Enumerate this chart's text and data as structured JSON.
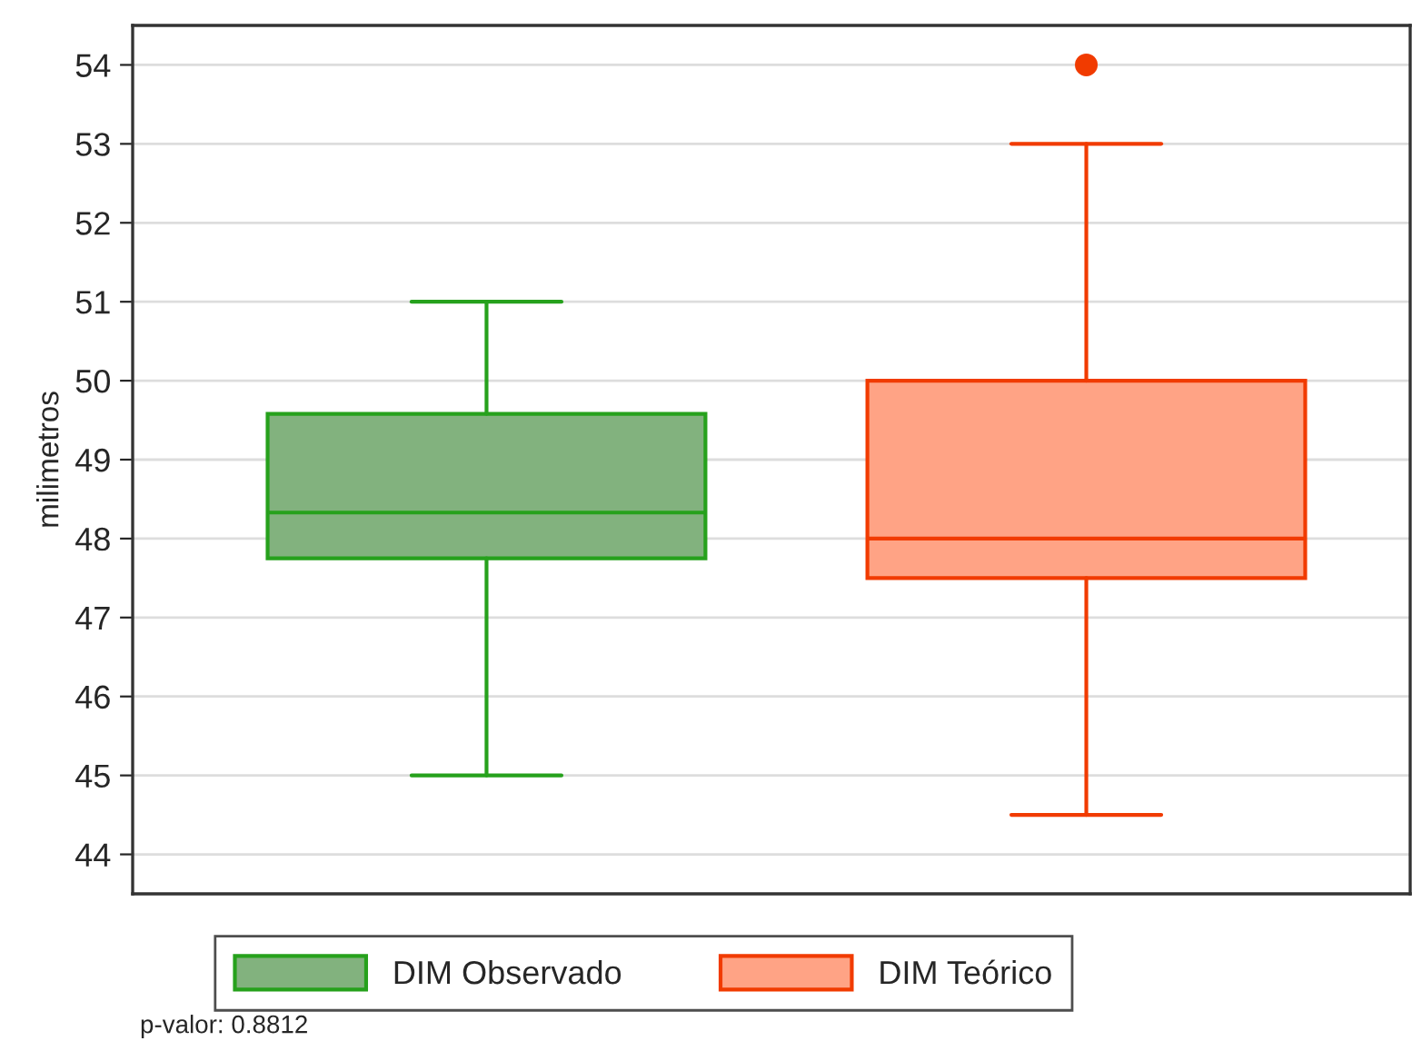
{
  "chart_data": {
    "type": "box",
    "ylabel": "milimetros",
    "categories": [
      null,
      null
    ],
    "series": [
      {
        "name": "DIM Observado",
        "color": "#82b27e",
        "boxes": [
          {
            "low": 45,
            "q1": 47.75,
            "median": 48.33,
            "q3": 49.58,
            "high": 51
          },
          null
        ]
      },
      {
        "name": "DIM Teórico",
        "color": "#ffa385",
        "boxes": [
          null,
          {
            "low": 44.5,
            "q1": 47.5,
            "median": 48,
            "q3": 50,
            "high": 53,
            "outliers": [
              54
            ]
          }
        ]
      }
    ],
    "ylim": [
      43.5,
      54.5
    ],
    "yticks": [
      44,
      45,
      46,
      47,
      48,
      49,
      50,
      51,
      52,
      53,
      54
    ],
    "grid": "y",
    "legend": "bottom",
    "tick_labels": "y",
    "annotations": [
      "p-valor: 0.8812"
    ]
  }
}
